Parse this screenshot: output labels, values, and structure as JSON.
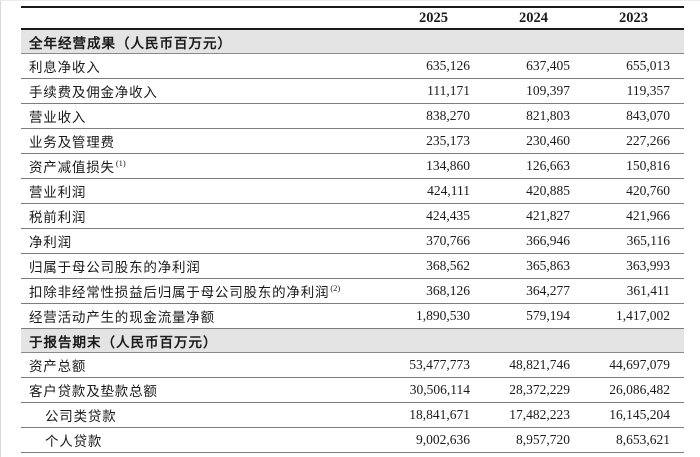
{
  "header": {
    "years": [
      "2025",
      "2024",
      "2023"
    ]
  },
  "sections": [
    {
      "title": "全年经营成果（人民币百万元）",
      "rows": [
        {
          "label": "利息净收入",
          "values": [
            "635,126",
            "637,405",
            "655,013"
          ]
        },
        {
          "label": "手续费及佣金净收入",
          "values": [
            "111,171",
            "109,397",
            "119,357"
          ]
        },
        {
          "label": "营业收入",
          "values": [
            "838,270",
            "821,803",
            "843,070"
          ]
        },
        {
          "label": "业务及管理费",
          "values": [
            "235,173",
            "230,460",
            "227,266"
          ]
        },
        {
          "label": "资产减值损失",
          "sup": "(1)",
          "values": [
            "134,860",
            "126,663",
            "150,816"
          ]
        },
        {
          "label": "营业利润",
          "values": [
            "424,111",
            "420,885",
            "420,760"
          ]
        },
        {
          "label": "税前利润",
          "values": [
            "424,435",
            "421,827",
            "421,966"
          ]
        },
        {
          "label": "净利润",
          "values": [
            "370,766",
            "366,946",
            "365,116"
          ]
        },
        {
          "label": "归属于母公司股东的净利润",
          "values": [
            "368,562",
            "365,863",
            "363,993"
          ]
        },
        {
          "label": "扣除非经常性损益后归属于母公司股东的净利润",
          "sup": "(2)",
          "values": [
            "368,126",
            "364,277",
            "361,411"
          ]
        },
        {
          "label": "经营活动产生的现金流量净额",
          "values": [
            "1,890,530",
            "579,194",
            "1,417,002"
          ]
        }
      ]
    },
    {
      "title": "于报告期末（人民币百万元）",
      "rows": [
        {
          "label": "资产总额",
          "values": [
            "53,477,773",
            "48,821,746",
            "44,697,079"
          ]
        },
        {
          "label": "客户贷款及垫款总额",
          "values": [
            "30,506,114",
            "28,372,229",
            "26,086,482"
          ]
        },
        {
          "label": "公司类贷款",
          "indent": true,
          "values": [
            "18,841,671",
            "17,482,223",
            "16,145,204"
          ]
        },
        {
          "label": "个人贷款",
          "indent": true,
          "values": [
            "9,002,636",
            "8,957,720",
            "8,653,621"
          ]
        }
      ]
    }
  ],
  "colors": {
    "section_band_bg": "#e4e4e4",
    "rule_heavy": "#1a1a1a",
    "rule_light": "#7d7d7d",
    "text": "#1a1a1a"
  }
}
